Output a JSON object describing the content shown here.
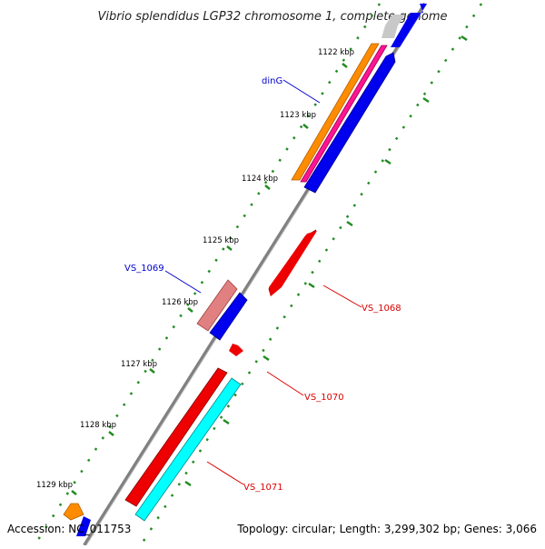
{
  "title": "Vibrio splendidus LGP32 chromosome 1, complete genome",
  "accession": "Accession: NC_011753",
  "topology": "Topology: circular; Length: 3,299,302 bp; Genes: 3,066",
  "ruler": [
    "1122 kbp",
    "1123 kbp",
    "1124 kbp",
    "1125 kbp",
    "1126 kbp",
    "1127 kbp",
    "1128 kbp",
    "1129 kbp"
  ],
  "gene_labels": {
    "dinG": "dinG",
    "vs1069": "VS_1069",
    "vs1068": "VS_1068",
    "vs1070": "VS_1070",
    "vs1071": "VS_1071"
  },
  "colors": {
    "forward_cds": "#0000ee",
    "reverse_cds": "#ee0000",
    "orange": "#ff8c00",
    "magenta": "#ff1493",
    "pink": "#e08080",
    "cyan": "#00ffff",
    "backbone": "#808080",
    "tick": "#228b22",
    "label_blue": "#0000cc",
    "label_red": "#dd0000"
  }
}
